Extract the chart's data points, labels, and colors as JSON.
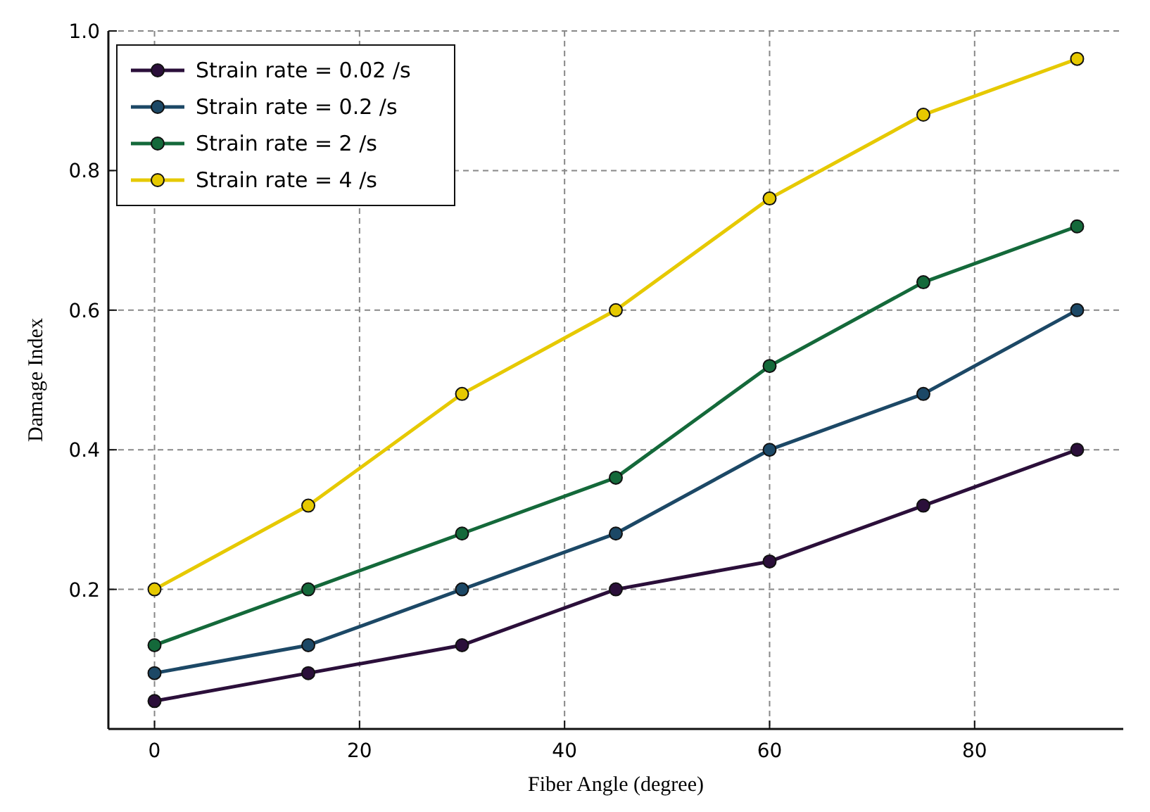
{
  "chart_data": {
    "type": "line",
    "xlabel": "Fiber Angle (degree)",
    "ylabel": "Damage Index",
    "x": [
      0,
      15,
      30,
      45,
      60,
      75,
      90
    ],
    "series": [
      {
        "name": "Strain rate = 0.02 /s",
        "color": "#2b0f3a",
        "values": [
          0.04,
          0.08,
          0.12,
          0.2,
          0.24,
          0.32,
          0.4
        ]
      },
      {
        "name": "Strain rate = 0.2 /s",
        "color": "#1c4866",
        "values": [
          0.08,
          0.12,
          0.2,
          0.28,
          0.4,
          0.48,
          0.6
        ]
      },
      {
        "name": "Strain rate = 2 /s",
        "color": "#14693a",
        "values": [
          0.12,
          0.2,
          0.28,
          0.36,
          0.52,
          0.64,
          0.72
        ]
      },
      {
        "name": "Strain rate = 4 /s",
        "color": "#e6c900",
        "values": [
          0.2,
          0.32,
          0.48,
          0.6,
          0.76,
          0.88,
          0.96
        ]
      }
    ],
    "xlim": [
      -4.5,
      94.5
    ],
    "ylim": [
      0,
      1.0
    ],
    "xticks": [
      0,
      20,
      40,
      60,
      80
    ],
    "yticks": [
      0.2,
      0.4,
      0.6,
      0.8,
      {
        "value": 1,
        "label": "1.0"
      }
    ],
    "grid": true,
    "legend": "top left",
    "marker": "circle",
    "line_style": "solid"
  }
}
